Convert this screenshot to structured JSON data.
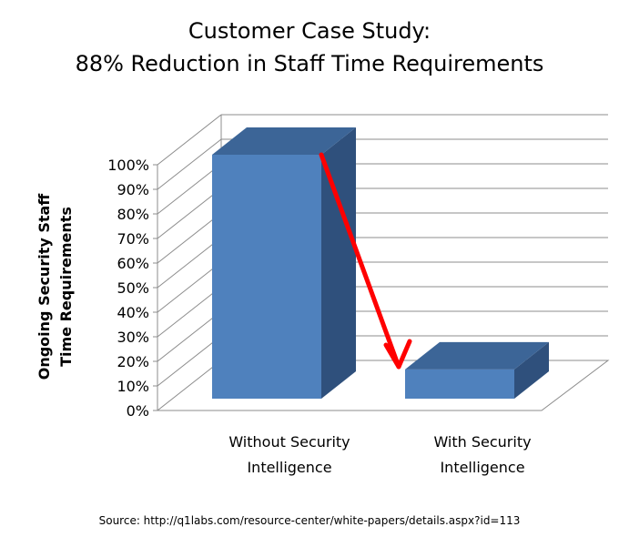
{
  "chart_data": {
    "type": "bar",
    "title": "Customer Case Study:",
    "subtitle": "88% Reduction in Staff Time Requirements",
    "ylabel_line1": "Ongoing Security Staff",
    "ylabel_line2": "Time Requirements",
    "categories": [
      [
        "Without Security",
        "Intelligence"
      ],
      [
        "With Security",
        "Intelligence"
      ]
    ],
    "values": [
      100,
      12
    ],
    "ylim": [
      0,
      100
    ],
    "yticks": [
      "0%",
      "10%",
      "20%",
      "30%",
      "40%",
      "50%",
      "60%",
      "70%",
      "80%",
      "90%",
      "100%"
    ],
    "grid": true,
    "three_d": true,
    "annotation": "red arrow from top of first bar down to second bar",
    "colors": {
      "bar_front": "#4f81bd",
      "bar_side": "#2f507c",
      "bar_top": "#3c6597",
      "arrow": "#ff0000",
      "grid": "#8c8c8c"
    }
  },
  "source_text": "Source: http://q1labs.com/resource-center/white-papers/details.aspx?id=113"
}
